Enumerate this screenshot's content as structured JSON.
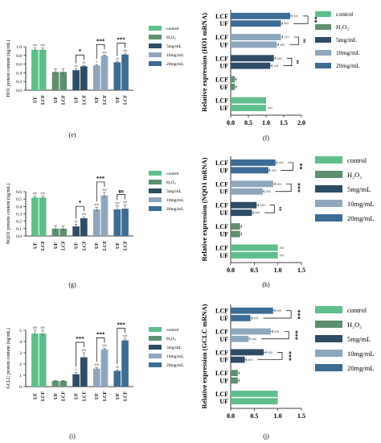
{
  "colors": {
    "control": "#5fbf8c",
    "h2o2": "#5e8f6e",
    "c5": "#2e4c66",
    "c10": "#8fa7bd",
    "c20": "#3d6c95"
  },
  "legend": {
    "labels": [
      "control",
      "H₂O₂",
      "5mg/mL",
      "10mg/mL",
      "20mg/mL"
    ]
  },
  "panel_labels": [
    "(e)",
    "(f)",
    "(g)",
    "(h)",
    "(i)",
    "(j)"
  ],
  "group_labels": [
    "UF",
    "LCF"
  ],
  "hbar_labels": [
    "LCF",
    "UF"
  ],
  "chart_data": [
    {
      "id": "e",
      "type": "bar",
      "ylabel": "HO1 protein content (ng/mL)",
      "yticks": [
        "0.0",
        "0.2",
        "0.4",
        "0.6",
        "0.8",
        "1.0"
      ],
      "ylim": [
        0,
        1.0
      ],
      "groups": [
        {
          "name": "control",
          "values": [
            0.93,
            0.93
          ],
          "err": [
            0.04,
            0.04
          ]
        },
        {
          "name": "H₂O₂",
          "values": [
            0.42,
            0.42
          ],
          "err": [
            0.07,
            0.07
          ]
        },
        {
          "name": "5mg/mL",
          "values": [
            0.46,
            0.55
          ],
          "err": [
            0.03,
            0.02
          ]
        },
        {
          "name": "10mg/mL",
          "values": [
            0.57,
            0.79
          ],
          "err": [
            0.02,
            0.02
          ]
        },
        {
          "name": "20mg/mL",
          "values": [
            0.64,
            0.82
          ],
          "err": [
            0.02,
            0.02
          ]
        }
      ],
      "top_marks": [
        [
          "###",
          "###"
        ],
        [
          "",
          ""
        ],
        [
          "##",
          "##"
        ],
        [
          "#",
          "###"
        ],
        [
          "##",
          "###"
        ]
      ],
      "sig": [
        "",
        "",
        "*",
        "***",
        "***"
      ]
    },
    {
      "id": "f",
      "type": "hbar",
      "xlabel": "Relative expression (HO1 mRNA)",
      "xticks": [
        "0.0",
        "0.5",
        "1.0",
        "1.5",
        "2.0"
      ],
      "xlim": [
        0,
        2.0
      ],
      "groups": [
        {
          "name": "20mg/mL",
          "values": [
            1.68,
            1.42
          ],
          "err": [
            0.05,
            0.04
          ]
        },
        {
          "name": "10mg/mL",
          "values": [
            1.42,
            1.3
          ],
          "err": [
            0.05,
            0.05
          ]
        },
        {
          "name": "5mg/mL",
          "values": [
            1.22,
            1.12
          ],
          "err": [
            0.05,
            0.05
          ]
        },
        {
          "name": "H₂O₂",
          "values": [
            0.12,
            0.12
          ],
          "err": [
            0.04,
            0.04
          ]
        },
        {
          "name": "control",
          "values": [
            1.0,
            1.0
          ],
          "err": [
            0.0,
            0.0
          ]
        }
      ],
      "bar_marks": [
        [
          "###",
          "###"
        ],
        [
          "###",
          "###"
        ],
        [
          "###",
          "###"
        ],
        [
          "",
          ""
        ],
        [
          "",
          "###"
        ]
      ],
      "sig": [
        "**",
        "ns",
        "ns",
        "",
        ""
      ]
    },
    {
      "id": "g",
      "type": "bar",
      "ylabel": "NQO1 protein content (ng/mL)",
      "yticks": [
        "0.0",
        "0.1",
        "0.2",
        "0.3",
        "0.4",
        "0.5",
        "0.6"
      ],
      "ylim": [
        0,
        0.6
      ],
      "groups": [
        {
          "name": "control",
          "values": [
            0.52,
            0.52
          ],
          "err": [
            0.02,
            0.02
          ]
        },
        {
          "name": "H₂O₂",
          "values": [
            0.1,
            0.1
          ],
          "err": [
            0.04,
            0.04
          ]
        },
        {
          "name": "5mg/mL",
          "values": [
            0.13,
            0.24
          ],
          "err": [
            0.03,
            0.02
          ]
        },
        {
          "name": "10mg/mL",
          "values": [
            0.36,
            0.55
          ],
          "err": [
            0.03,
            0.04
          ]
        },
        {
          "name": "20mg/mL",
          "values": [
            0.36,
            0.37
          ],
          "err": [
            0.05,
            0.05
          ]
        }
      ],
      "top_marks": [
        [
          "###",
          "###"
        ],
        [
          "",
          ""
        ],
        [
          "##",
          "###"
        ],
        [
          "###",
          "###"
        ],
        [
          "###",
          "###"
        ]
      ],
      "sig": [
        "",
        "",
        "*",
        "***",
        "ns"
      ]
    },
    {
      "id": "h",
      "type": "hbar",
      "xlabel": "Relative expression (NQO1 mRNA)",
      "xticks": [
        "0.0",
        "0.5",
        "1.0",
        "1.5"
      ],
      "xlim": [
        0,
        1.5
      ],
      "groups": [
        {
          "name": "20mg/mL",
          "values": [
            0.95,
            0.8
          ],
          "err": [
            0.03,
            0.03
          ]
        },
        {
          "name": "10mg/mL",
          "values": [
            0.9,
            0.68
          ],
          "err": [
            0.04,
            0.03
          ]
        },
        {
          "name": "5mg/mL",
          "values": [
            0.55,
            0.45
          ],
          "err": [
            0.04,
            0.03
          ]
        },
        {
          "name": "H₂O₂",
          "values": [
            0.2,
            0.2
          ],
          "err": [
            0.03,
            0.03
          ]
        },
        {
          "name": "control",
          "values": [
            1.0,
            1.0
          ],
          "err": [
            0.0,
            0.0
          ]
        }
      ],
      "bar_marks": [
        [
          "###",
          "###"
        ],
        [
          "###",
          "###"
        ],
        [
          "###",
          "###"
        ],
        [
          "",
          ""
        ],
        [
          "###",
          "###"
        ]
      ],
      "sig": [
        "**",
        "***",
        "ns",
        "",
        ""
      ]
    },
    {
      "id": "i",
      "type": "bar",
      "ylabel": "GCLC protein content (ng/mL)",
      "yticks": [
        "0",
        "1",
        "2",
        "3",
        "4",
        "5"
      ],
      "ylim": [
        0,
        5
      ],
      "groups": [
        {
          "name": "control",
          "values": [
            4.7,
            4.7
          ],
          "err": [
            0.3,
            0.3
          ]
        },
        {
          "name": "H₂O₂",
          "values": [
            0.5,
            0.5
          ],
          "err": [
            0.05,
            0.05
          ]
        },
        {
          "name": "5mg/mL",
          "values": [
            1.1,
            2.6
          ],
          "err": [
            0.15,
            0.4
          ]
        },
        {
          "name": "10mg/mL",
          "values": [
            1.6,
            3.3
          ],
          "err": [
            0.1,
            0.1
          ]
        },
        {
          "name": "20mg/mL",
          "values": [
            1.4,
            4.1
          ],
          "err": [
            0.1,
            0.15
          ]
        }
      ],
      "top_marks": [
        [
          "###",
          "###"
        ],
        [
          "",
          ""
        ],
        [
          "#",
          "###"
        ],
        [
          "###",
          "###"
        ],
        [
          "##",
          "###"
        ]
      ],
      "sig": [
        "",
        "",
        "***",
        "***",
        "***"
      ]
    },
    {
      "id": "j",
      "type": "hbar",
      "xlabel": "Relative expression (GCLC mRNA)",
      "xticks": [
        "0.0",
        "0.5",
        "1.0",
        "1.5"
      ],
      "xlim": [
        0,
        1.5
      ],
      "groups": [
        {
          "name": "20mg/mL",
          "values": [
            0.9,
            0.42
          ],
          "err": [
            0.04,
            0.03
          ]
        },
        {
          "name": "10mg/mL",
          "values": [
            0.85,
            0.38
          ],
          "err": [
            0.04,
            0.03
          ]
        },
        {
          "name": "5mg/mL",
          "values": [
            0.7,
            0.3
          ],
          "err": [
            0.05,
            0.03
          ]
        },
        {
          "name": "H₂O₂",
          "values": [
            0.15,
            0.15
          ],
          "err": [
            0.03,
            0.03
          ]
        },
        {
          "name": "control",
          "values": [
            1.0,
            1.0
          ],
          "err": [
            0.0,
            0.0
          ]
        }
      ],
      "bar_marks": [
        [
          "###",
          "###"
        ],
        [
          "###",
          "###"
        ],
        [
          "###",
          "###"
        ],
        [
          "",
          ""
        ],
        [
          "",
          ""
        ]
      ],
      "sig": [
        "***",
        "***",
        "***",
        "",
        ""
      ]
    }
  ]
}
